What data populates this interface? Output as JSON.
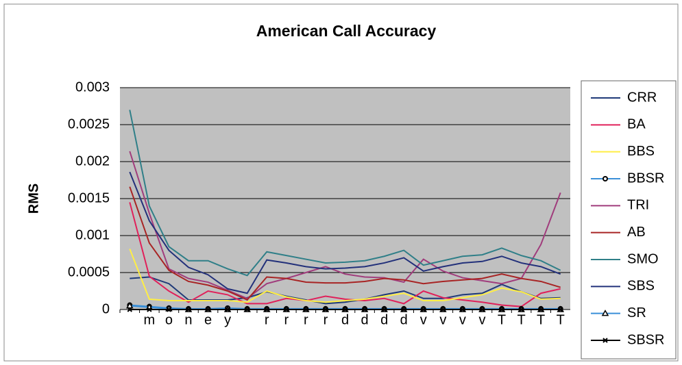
{
  "chart_data": {
    "type": "line",
    "title": "American Call Accuracy",
    "ylabel": "RMS",
    "categories": [
      null,
      "m",
      "o",
      "n",
      "e",
      "y",
      null,
      "r",
      "r",
      "r",
      "r",
      "d",
      "d",
      "d",
      "d",
      "v",
      "v",
      "v",
      "v",
      "T",
      "T",
      "T",
      "T"
    ],
    "ylim": [
      0,
      0.003
    ],
    "yticks": [
      0,
      0.0005,
      0.001,
      0.0015,
      0.002,
      0.0025,
      0.003
    ],
    "grid": true,
    "legend": "right",
    "series": [
      {
        "name": "CRR",
        "color": "#1f3a78",
        "values": [
          0.00042,
          0.00044,
          0.00035,
          0.00013,
          0.00013,
          0.00013,
          0.00016,
          0.00024,
          0.00018,
          0.00013,
          8e-05,
          0.0001,
          0.00014,
          0.0002,
          0.00025,
          0.00015,
          0.00015,
          0.0002,
          0.00022,
          0.00034,
          0.00024,
          0.00015,
          0.00016
        ]
      },
      {
        "name": "BA",
        "color": "#e0205a",
        "values": [
          0.00145,
          0.00045,
          0.00025,
          0.0001,
          0.00025,
          0.0002,
          8e-05,
          8e-05,
          0.00015,
          0.00012,
          0.00018,
          0.00014,
          0.00012,
          0.00015,
          8e-05,
          0.00025,
          0.00016,
          0.00013,
          0.0001,
          6e-05,
          4e-05,
          0.00022,
          0.00028
        ]
      },
      {
        "name": "BBS",
        "color": "#ffee44",
        "values": [
          0.00082,
          0.00014,
          0.00012,
          0.00012,
          0.00012,
          0.00012,
          0.0001,
          0.00025,
          0.00017,
          0.00012,
          0.0001,
          0.00012,
          0.00014,
          0.00018,
          0.00022,
          0.00012,
          0.00012,
          0.00016,
          0.0002,
          0.00029,
          0.00024,
          0.00014,
          0.00015
        ]
      },
      {
        "name": "BBSR",
        "color": "#3a8fd8",
        "marker": "circle",
        "values": [
          6e-05,
          4e-05,
          2e-05,
          1e-05,
          1e-05,
          2e-05,
          1e-05,
          1e-05,
          1e-05,
          1e-05,
          1e-05,
          1e-05,
          1e-05,
          1e-05,
          1e-05,
          1e-05,
          1e-05,
          1e-05,
          1e-05,
          1e-05,
          1e-05,
          1e-05,
          1e-05
        ]
      },
      {
        "name": "TRI",
        "color": "#a03c7c",
        "values": [
          0.00214,
          0.0013,
          0.00055,
          0.00042,
          0.00037,
          0.00026,
          0.00015,
          0.00035,
          0.00042,
          0.0005,
          0.00058,
          0.00048,
          0.00044,
          0.00043,
          0.00037,
          0.00068,
          0.00052,
          0.00043,
          0.00039,
          0.00035,
          0.00042,
          0.00088,
          0.00158
        ]
      },
      {
        "name": "AB",
        "color": "#a82424",
        "values": [
          0.00166,
          0.0009,
          0.00053,
          0.00038,
          0.00033,
          0.00025,
          0.00013,
          0.00044,
          0.00042,
          0.00037,
          0.00036,
          0.00036,
          0.00038,
          0.00042,
          0.0004,
          0.00035,
          0.00038,
          0.0004,
          0.00042,
          0.00048,
          0.00042,
          0.00038,
          0.0003
        ]
      },
      {
        "name": "SMO",
        "color": "#2f7f88",
        "values": [
          0.0027,
          0.0014,
          0.00085,
          0.00066,
          0.00066,
          0.00055,
          0.00046,
          0.00078,
          0.00073,
          0.00068,
          0.00063,
          0.00064,
          0.00066,
          0.00072,
          0.0008,
          0.0006,
          0.00066,
          0.00072,
          0.00074,
          0.00083,
          0.00073,
          0.00066,
          0.00053
        ]
      },
      {
        "name": "SBS",
        "color": "#22307a",
        "values": [
          0.00186,
          0.0012,
          0.0008,
          0.00057,
          0.00047,
          0.00028,
          0.00022,
          0.00067,
          0.00063,
          0.00058,
          0.00055,
          0.00056,
          0.00058,
          0.00063,
          0.0007,
          0.00052,
          0.00058,
          0.00063,
          0.00065,
          0.00072,
          0.00063,
          0.00058,
          0.00048
        ]
      },
      {
        "name": "SR",
        "color": "#3a8fd8",
        "marker": "triangle",
        "values": [
          5e-05,
          3e-05,
          1e-05,
          0,
          0,
          0,
          0,
          0,
          0,
          0,
          0,
          0,
          0,
          0,
          0,
          0,
          0,
          0,
          0,
          0,
          0,
          0,
          0
        ]
      },
      {
        "name": "SBSR",
        "color": "#000000",
        "marker": "x",
        "values": [
          0,
          0,
          0,
          0,
          0,
          0,
          0,
          0,
          0,
          0,
          0,
          0,
          0,
          0,
          0,
          0,
          0,
          0,
          0,
          0,
          0,
          0,
          0
        ]
      }
    ]
  }
}
